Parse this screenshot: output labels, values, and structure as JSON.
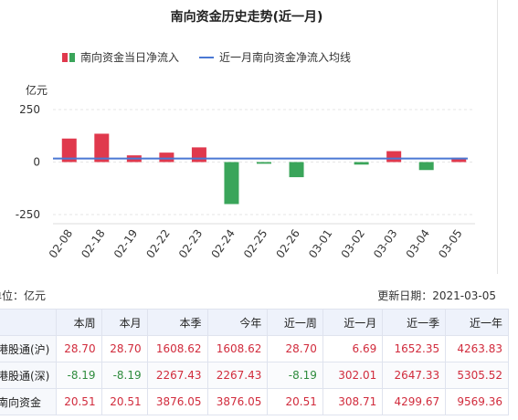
{
  "chart_data": {
    "type": "bar",
    "title": "南向资金历史走势(近一月)",
    "ylabel": "亿元",
    "ylim": [
      -250,
      250
    ],
    "yticks": [
      250,
      0,
      -250
    ],
    "categories": [
      "02-08",
      "02-18",
      "02-19",
      "02-22",
      "02-23",
      "02-24",
      "02-25",
      "02-26",
      "03-01",
      "03-02",
      "03-03",
      "03-04",
      "03-05"
    ],
    "series": [
      {
        "name": "南向资金当日净流入",
        "type": "bar",
        "values": [
          112,
          135,
          32,
          45,
          70,
          -200,
          -8,
          -72,
          0,
          -12,
          52,
          -38,
          20.51
        ]
      },
      {
        "name": "近一月南向资金净流入均线",
        "type": "line",
        "value": 17
      }
    ],
    "colors": {
      "pos": "#e0394d",
      "neg": "#3aa55a",
      "line": "#4a78d4"
    },
    "legend": "top"
  },
  "info": {
    "unit": "单位：亿元",
    "update": "更新日期：2021-03-05"
  },
  "table": {
    "headers": [
      "",
      "本周",
      "本月",
      "本季",
      "今年",
      "近一周",
      "近一月",
      "近一季",
      "近一年"
    ],
    "rows": [
      {
        "name": "港股通(沪)",
        "cells": [
          "28.70",
          "28.70",
          "1608.62",
          "1608.62",
          "28.70",
          "6.69",
          "1652.35",
          "4263.83"
        ]
      },
      {
        "name": "港股通(深)",
        "cells": [
          "-8.19",
          "-8.19",
          "2267.43",
          "2267.43",
          "-8.19",
          "302.01",
          "2647.33",
          "5305.52"
        ]
      },
      {
        "name": "南向资金",
        "cells": [
          "20.51",
          "20.51",
          "3876.05",
          "3876.05",
          "20.51",
          "308.71",
          "4299.67",
          "9569.36"
        ]
      }
    ]
  }
}
